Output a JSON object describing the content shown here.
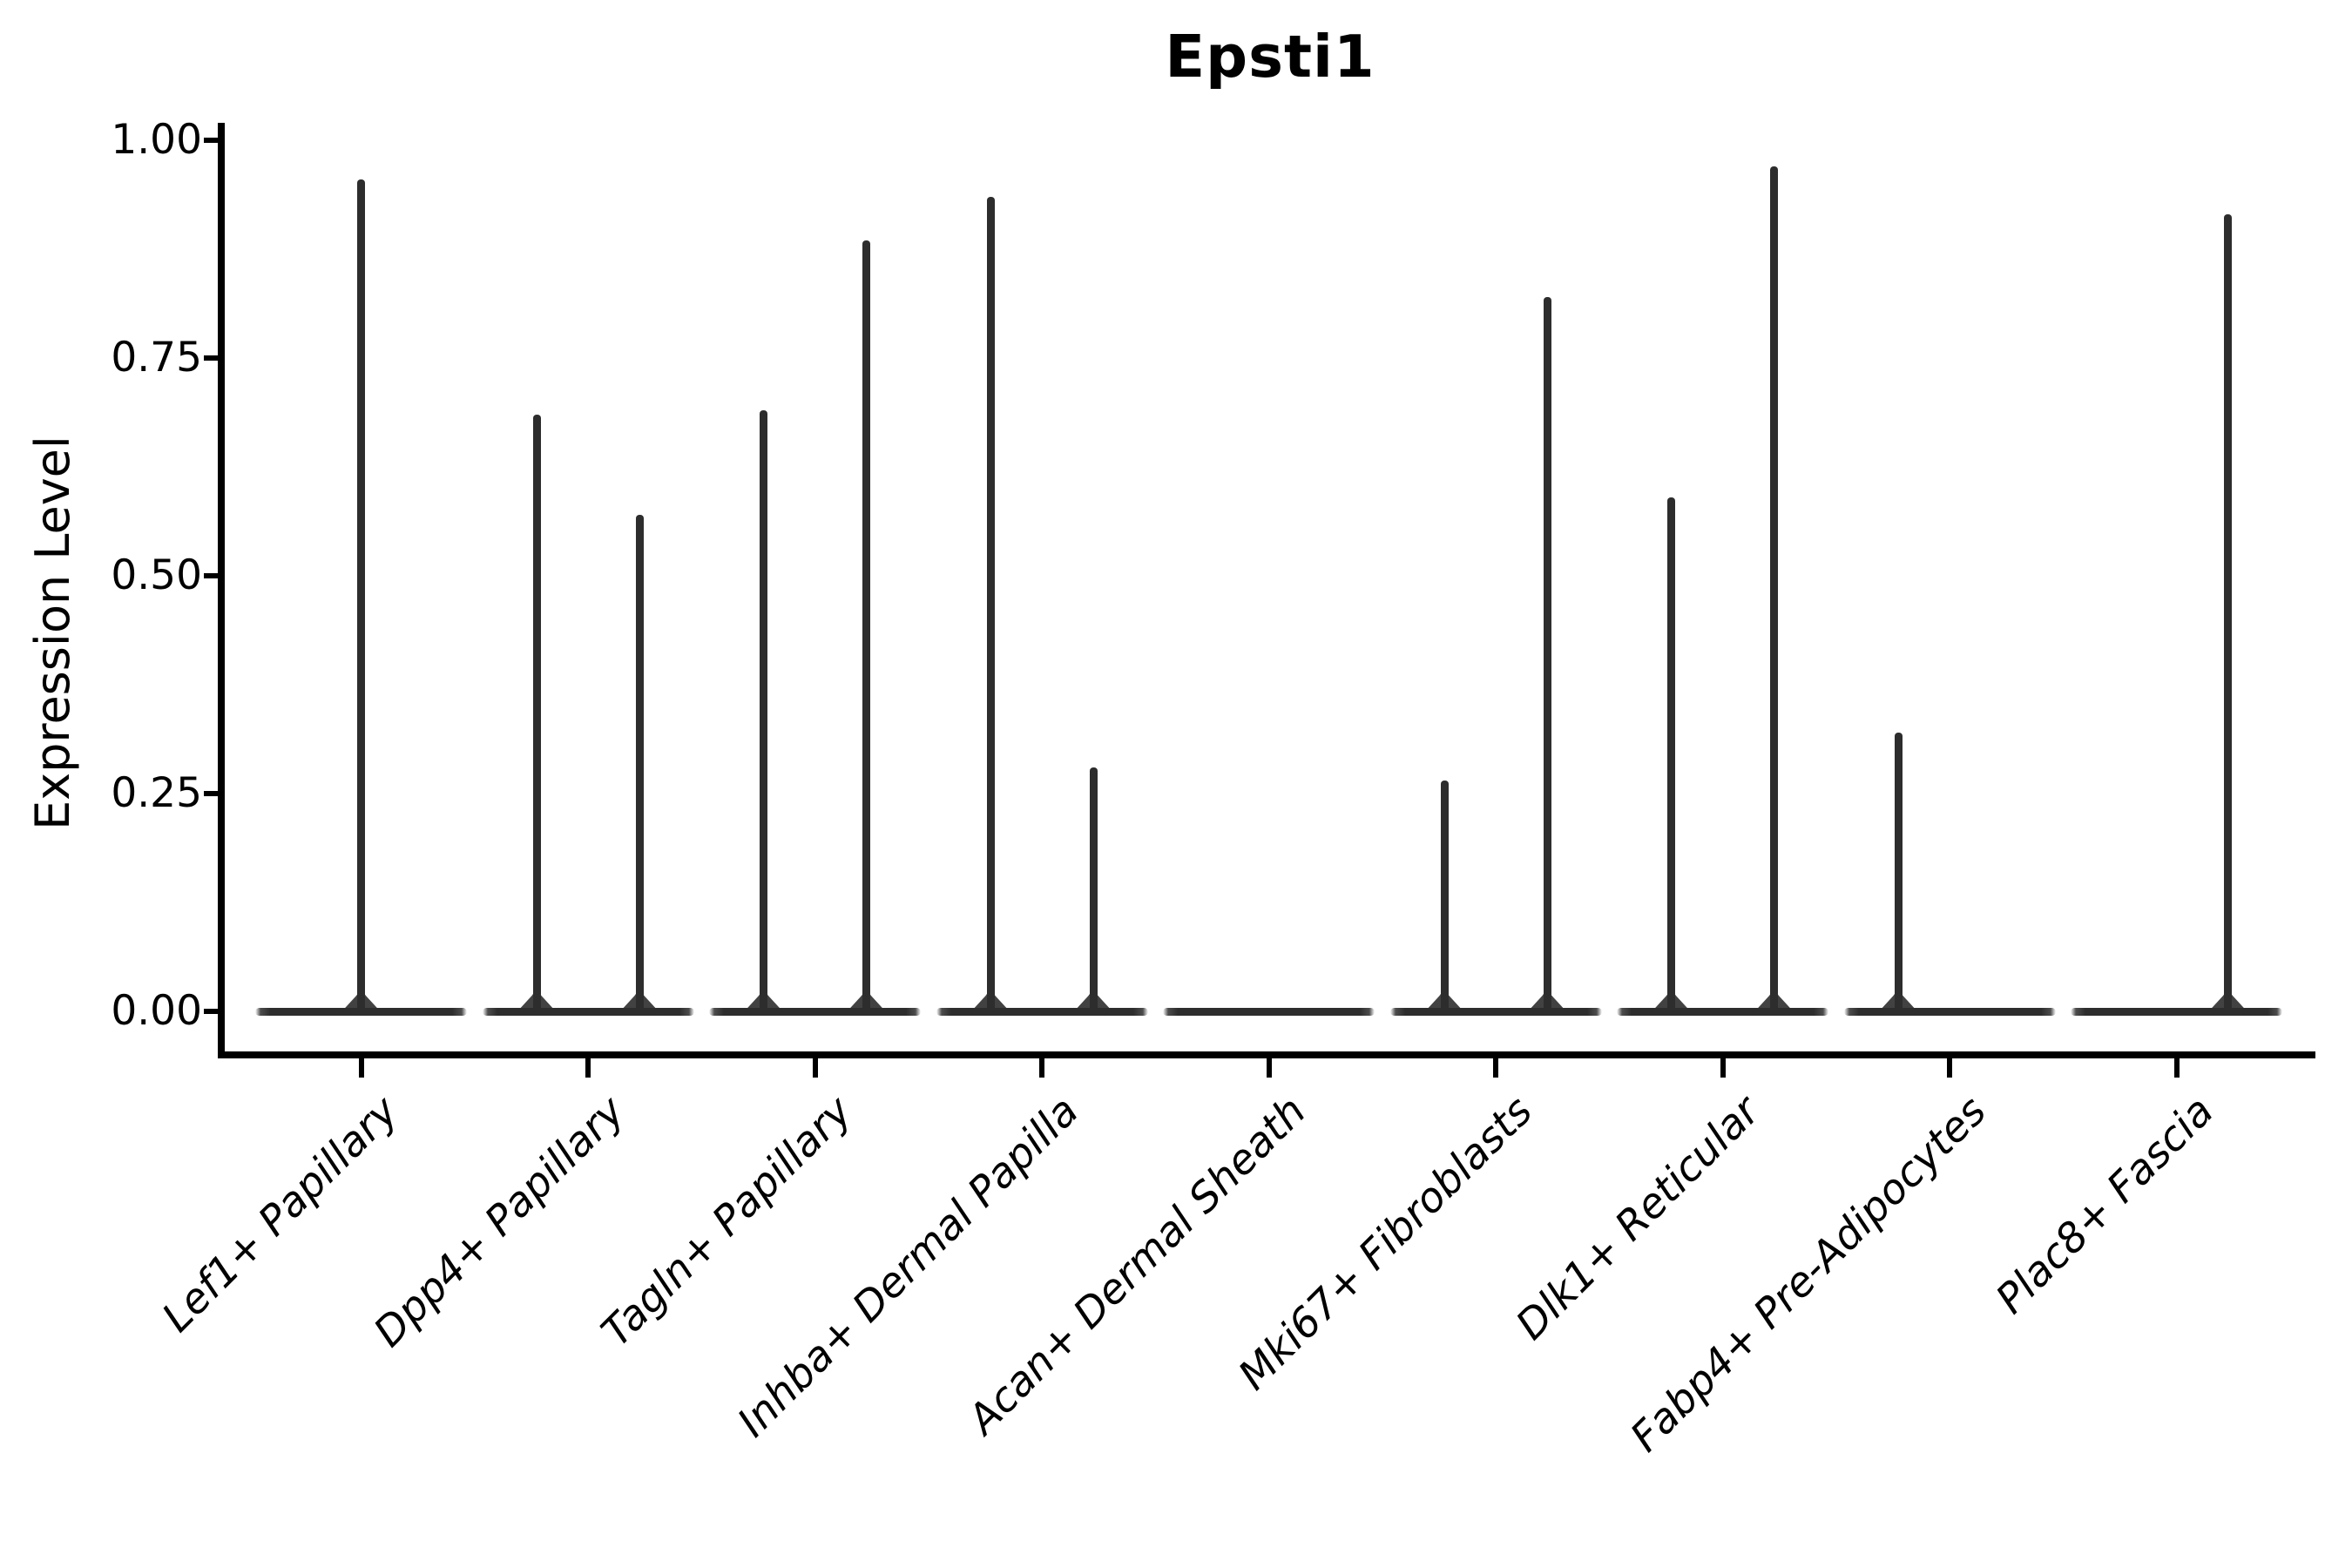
{
  "title": "Epsti1",
  "axes": {
    "ylabel": "Expression Level",
    "ytick_labels": [
      "1.00",
      "0.75",
      "0.50",
      "0.25",
      "0.00"
    ]
  },
  "chart_data": {
    "type": "violin",
    "title": "Epsti1",
    "xlabel": "",
    "ylabel": "Expression Level",
    "ylim": [
      0,
      1
    ],
    "yticks": [
      1.0,
      0.75,
      0.5,
      0.25,
      0.0
    ],
    "ytick_labels": [
      "1.00",
      "0.75",
      "0.50",
      "0.25",
      "0.00"
    ],
    "grid": false,
    "legend": "none",
    "violin_color": "#2d2d2d",
    "style_note": "needle-thin violins on a flat zero baseline",
    "categories": [
      "Lef1+ Papillary",
      "Dpp4+ Papillary",
      "Tagln+ Papillary",
      "Inhba+ Dermal Papilla",
      "Acan+ Dermal Sheath",
      "Mki67+ Fibroblasts",
      "Dlk1+ Reticular",
      "Fabp4+ Pre-Adipocytes",
      "Plac8+ Fascia"
    ],
    "violins": [
      {
        "category": "Lef1+ Papillary",
        "zero_baseline": true,
        "spikes": [
          {
            "position": "center",
            "value": 0.955
          }
        ]
      },
      {
        "category": "Dpp4+ Papillary",
        "zero_baseline": true,
        "spikes": [
          {
            "position": "left",
            "value": 0.685
          },
          {
            "position": "right",
            "value": 0.57
          }
        ]
      },
      {
        "category": "Tagln+ Papillary",
        "zero_baseline": true,
        "spikes": [
          {
            "position": "left",
            "value": 0.69
          },
          {
            "position": "right",
            "value": 0.885
          }
        ]
      },
      {
        "category": "Inhba+ Dermal Papilla",
        "zero_baseline": true,
        "spikes": [
          {
            "position": "left",
            "value": 0.935
          },
          {
            "position": "right",
            "value": 0.28
          }
        ]
      },
      {
        "category": "Acan+ Dermal Sheath",
        "zero_baseline": true,
        "spikes": []
      },
      {
        "category": "Mki67+ Fibroblasts",
        "zero_baseline": true,
        "spikes": [
          {
            "position": "left",
            "value": 0.265
          },
          {
            "position": "right",
            "value": 0.82
          }
        ]
      },
      {
        "category": "Dlk1+ Reticular",
        "zero_baseline": true,
        "spikes": [
          {
            "position": "left",
            "value": 0.59
          },
          {
            "position": "right",
            "value": 0.97
          }
        ]
      },
      {
        "category": "Fabp4+ Pre-Adipocytes",
        "zero_baseline": true,
        "spikes": [
          {
            "position": "left",
            "value": 0.32
          }
        ]
      },
      {
        "category": "Plac8+ Fascia",
        "zero_baseline": true,
        "spikes": [
          {
            "position": "right",
            "value": 0.915
          }
        ]
      }
    ]
  }
}
